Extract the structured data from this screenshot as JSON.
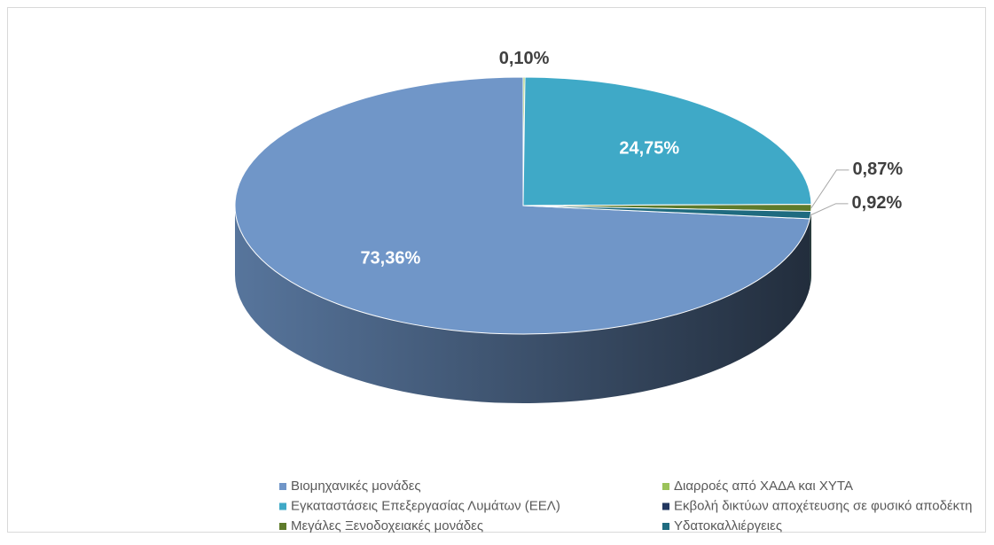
{
  "chart_data": {
    "type": "pie3d",
    "categories": [
      "Βιομηχανικές μονάδες",
      "Διαρροές από ΧΑΔΑ και ΧΥΤΑ",
      "Εγκαταστάσεις Επεξεργασίας Λυμάτων (ΕΕΛ)",
      "Εκβολή δικτύων αποχέτευσης σε φυσικό αποδέκτη",
      "Μεγάλες Ξενοδοχειακές μονάδες",
      "Υδατοκαλλιέργειες"
    ],
    "values": [
      73.36,
      0.1,
      24.75,
      0,
      0.87,
      0.92
    ],
    "value_labels": [
      "73,36%",
      "0,10%",
      "24,75%",
      null,
      "0,87%",
      "0,92%"
    ],
    "colors": [
      "#7096c8",
      "#9bc35a",
      "#3fa9c7",
      "#22375f",
      "#5e7b2b",
      "#1f6b80"
    ],
    "legend": "bottom"
  }
}
